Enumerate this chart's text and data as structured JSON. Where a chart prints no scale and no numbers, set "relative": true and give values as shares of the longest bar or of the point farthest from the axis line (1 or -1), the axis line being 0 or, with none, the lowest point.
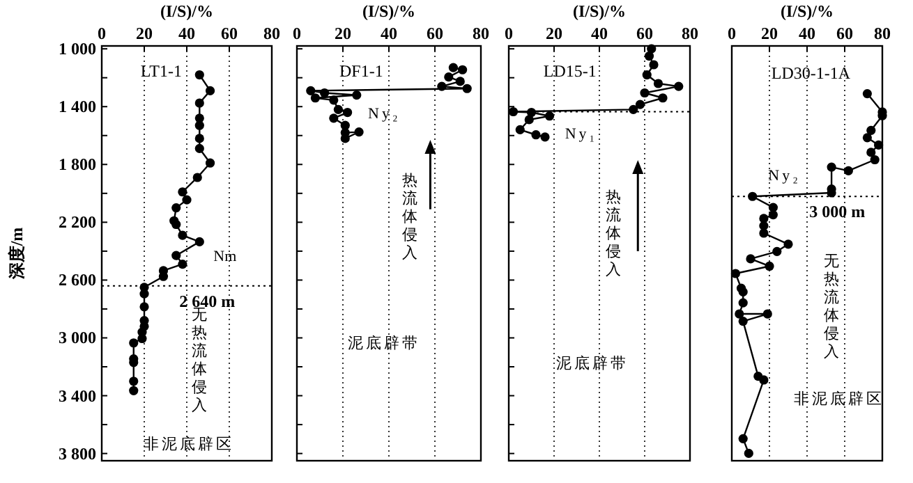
{
  "chart_data": [
    {
      "type": "line",
      "title": "LT1-1",
      "xlabel": "(I/S)/%",
      "ylabel": "深度/m",
      "xlim": [
        0,
        80
      ],
      "ylim": [
        3850,
        980
      ],
      "xticks": [
        0,
        20,
        40,
        60,
        80
      ],
      "yticks": [
        {
          "value": 1000,
          "label": "1 000"
        },
        {
          "value": 1200,
          "label": null
        },
        {
          "value": 1400,
          "label": "1 400"
        },
        {
          "value": 1600,
          "label": null
        },
        {
          "value": 1800,
          "label": "1 800"
        },
        {
          "value": 2000,
          "label": null
        },
        {
          "value": 2200,
          "label": "2 200"
        },
        {
          "value": 2400,
          "label": null
        },
        {
          "value": 2600,
          "label": "2 600"
        },
        {
          "value": 2800,
          "label": null
        },
        {
          "value": 3000,
          "label": "3 000"
        },
        {
          "value": 3200,
          "label": null
        },
        {
          "value": 3400,
          "label": "3 400"
        },
        {
          "value": 3600,
          "label": null
        },
        {
          "value": 3800,
          "label": "3 800"
        }
      ],
      "grid": "x",
      "marker": "circle",
      "line_style": "solid",
      "ref_lines": [
        {
          "axis": "y",
          "value": 2640,
          "label": "2 640 m",
          "line_style": "dotted"
        }
      ],
      "annotations": [
        "无热流体侵入",
        "非泥底辟区",
        {
          "text": "Nm",
          "x": 46,
          "y": 2335
        }
      ],
      "series": [
        {
          "color": "#000000",
          "x": [
            46,
            51,
            46,
            46,
            46,
            46,
            46,
            51,
            45,
            38,
            40,
            35,
            34,
            35,
            38,
            46,
            35,
            38,
            29,
            29,
            20,
            20,
            20,
            20,
            20,
            19,
            19,
            15,
            15,
            15,
            15,
            15
          ],
          "values": [
            1180,
            1290,
            1375,
            1480,
            1530,
            1620,
            1690,
            1790,
            1890,
            1990,
            2045,
            2100,
            2190,
            2215,
            2290,
            2335,
            2430,
            2490,
            2535,
            2575,
            2650,
            2695,
            2785,
            2880,
            2920,
            2960,
            3005,
            3035,
            3145,
            3170,
            3300,
            3365
          ]
        }
      ]
    },
    {
      "type": "line",
      "title": "DF1-1",
      "xlabel": "(I/S)/%",
      "xlim": [
        0,
        80
      ],
      "ylim": [
        3850,
        980
      ],
      "xticks": [
        0,
        20,
        40,
        60,
        80
      ],
      "yticks": [
        {
          "value": 1000,
          "label": null
        },
        {
          "value": 1200,
          "label": null
        },
        {
          "value": 1400,
          "label": null
        },
        {
          "value": 1600,
          "label": null
        },
        {
          "value": 1800,
          "label": null
        },
        {
          "value": 2000,
          "label": null
        },
        {
          "value": 2200,
          "label": null
        },
        {
          "value": 2400,
          "label": null
        },
        {
          "value": 2600,
          "label": null
        },
        {
          "value": 2800,
          "label": null
        },
        {
          "value": 3000,
          "label": null
        },
        {
          "value": 3200,
          "label": null
        },
        {
          "value": 3400,
          "label": null
        },
        {
          "value": 3600,
          "label": null
        },
        {
          "value": 3800,
          "label": null
        }
      ],
      "tick_labels": "x",
      "grid": "x",
      "marker": "circle",
      "line_style": "solid",
      "annotations": [
        "Ny₂",
        "热流体侵入",
        "泥底辟带"
      ],
      "series": [
        {
          "color": "#000000",
          "x": [
            68,
            72,
            66,
            71,
            63,
            74,
            6,
            12,
            26,
            8,
            16,
            18,
            22,
            16,
            21,
            21,
            27,
            21
          ],
          "values": [
            1130,
            1145,
            1195,
            1225,
            1260,
            1275,
            1290,
            1305,
            1320,
            1340,
            1355,
            1420,
            1440,
            1480,
            1530,
            1580,
            1575,
            1620
          ]
        }
      ]
    },
    {
      "type": "line",
      "title": "LD15-1",
      "xlabel": "(I/S)/%",
      "xlim": [
        0,
        80
      ],
      "ylim": [
        3850,
        980
      ],
      "xticks": [
        0,
        20,
        40,
        60,
        80
      ],
      "yticks": [
        {
          "value": 1000,
          "label": null
        },
        {
          "value": 1200,
          "label": null
        },
        {
          "value": 1400,
          "label": null
        },
        {
          "value": 1600,
          "label": null
        },
        {
          "value": 1800,
          "label": null
        },
        {
          "value": 2000,
          "label": null
        },
        {
          "value": 2200,
          "label": null
        },
        {
          "value": 2400,
          "label": null
        },
        {
          "value": 2600,
          "label": null
        },
        {
          "value": 2800,
          "label": null
        },
        {
          "value": 3000,
          "label": null
        },
        {
          "value": 3200,
          "label": null
        },
        {
          "value": 3400,
          "label": null
        },
        {
          "value": 3600,
          "label": null
        },
        {
          "value": 3800,
          "label": null
        }
      ],
      "tick_labels": "x",
      "grid": "x",
      "marker": "circle",
      "line_style": "solid",
      "ref_lines": [
        {
          "axis": "y",
          "value": 1435,
          "line_style": "dotted"
        }
      ],
      "annotations": [
        "Ny₁",
        "热流体侵入",
        "泥底辟带"
      ],
      "series": [
        {
          "color": "#000000",
          "x": [
            63,
            62,
            64,
            61,
            66,
            75,
            60,
            68,
            58,
            55,
            2,
            10,
            18,
            9,
            5,
            12,
            16
          ],
          "values": [
            1000,
            1050,
            1110,
            1180,
            1240,
            1260,
            1305,
            1340,
            1385,
            1420,
            1435,
            1440,
            1465,
            1490,
            1560,
            1595,
            1610
          ]
        }
      ]
    },
    {
      "type": "line",
      "title": "LD30-1-1A",
      "xlabel": "(I/S)/%",
      "xlim": [
        0,
        80
      ],
      "relative": true,
      "xticks": [
        0,
        20,
        40,
        60,
        80
      ],
      "tick_labels": "x",
      "grid": "x",
      "marker": "circle",
      "line_style": "solid",
      "ref_lines": [
        {
          "axis": "y",
          "value": 0.72,
          "label": "3 000 m",
          "line_style": "dotted"
        }
      ],
      "annotations": [
        "Ny₂",
        "无热流体侵入",
        "非泥底辟区"
      ],
      "series": [
        {
          "color": "#000000",
          "x": [
            72,
            80,
            80,
            74,
            72,
            78,
            74,
            76,
            62,
            53,
            53,
            53,
            11,
            22,
            22,
            17,
            17,
            17,
            30,
            24,
            10,
            20,
            2,
            5,
            6,
            6,
            4,
            19,
            6,
            14,
            17,
            6,
            9
          ],
          "values": [
            1,
            0.95,
            0.94,
            0.9,
            0.88,
            0.86,
            0.84,
            0.82,
            0.79,
            0.8,
            0.74,
            0.73,
            0.72,
            0.69,
            0.67,
            0.66,
            0.64,
            0.62,
            0.59,
            0.57,
            0.55,
            0.53,
            0.51,
            0.47,
            0.46,
            0.43,
            0.4,
            0.4,
            0.38,
            0.23,
            0.22,
            0.06,
            0.02
          ]
        }
      ]
    }
  ]
}
